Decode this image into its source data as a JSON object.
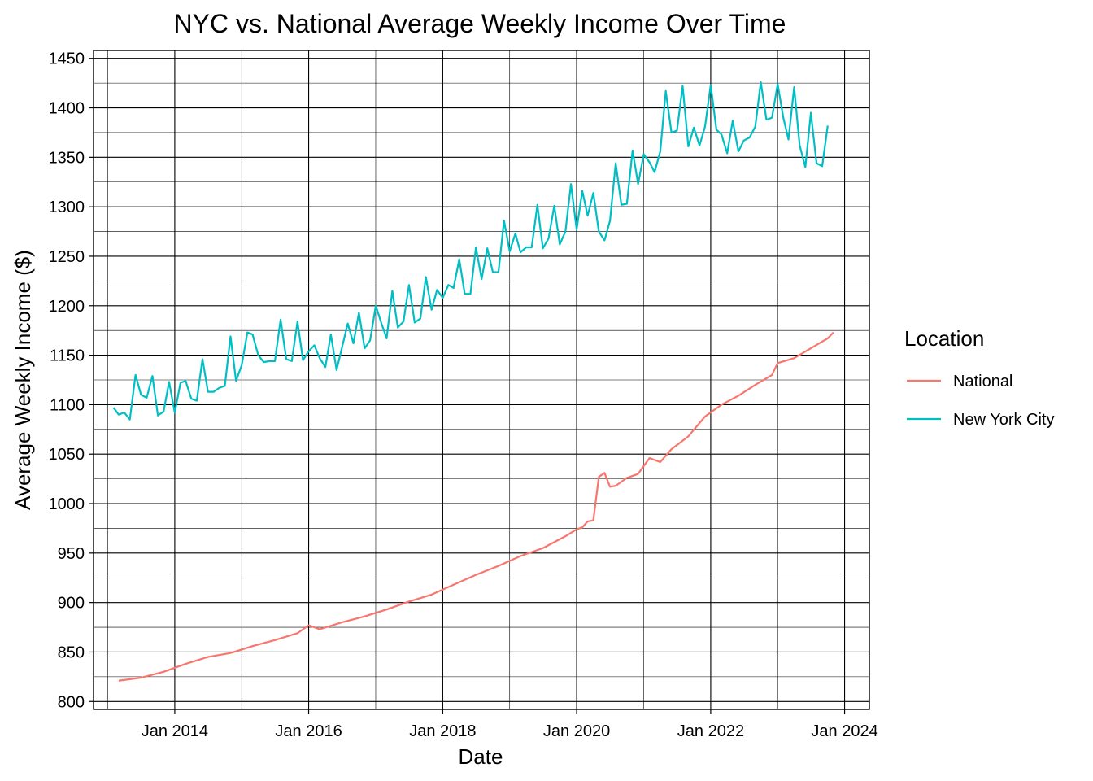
{
  "chart_data": {
    "type": "line",
    "title": "NYC vs. National Average Weekly Income Over Time",
    "xlabel": "Date",
    "ylabel": "Average Weekly Income ($)",
    "xlim": [
      "2012-10-15",
      "2024-05-15"
    ],
    "ylim": [
      792,
      1458
    ],
    "x_ticks": [
      "2014-01-01",
      "2016-01-01",
      "2018-01-01",
      "2020-01-01",
      "2022-01-01",
      "2024-01-01"
    ],
    "x_tick_labels": [
      "Jan 2014",
      "Jan 2016",
      "Jan 2018",
      "Jan 2020",
      "Jan 2022",
      "Jan 2024"
    ],
    "y_ticks": [
      800,
      850,
      900,
      950,
      1000,
      1050,
      1100,
      1150,
      1200,
      1250,
      1300,
      1350,
      1400,
      1450
    ],
    "grid": true,
    "legend": {
      "title": "Location",
      "position": "right"
    },
    "series": [
      {
        "name": "National",
        "color": "#F8766D",
        "points": [
          [
            "2013-03-01",
            821
          ],
          [
            "2013-07-01",
            824
          ],
          [
            "2013-11-01",
            830
          ],
          [
            "2014-03-01",
            838
          ],
          [
            "2014-07-01",
            845
          ],
          [
            "2014-11-01",
            849
          ],
          [
            "2015-03-01",
            856
          ],
          [
            "2015-07-01",
            862
          ],
          [
            "2015-11-01",
            869
          ],
          [
            "2016-01-01",
            877
          ],
          [
            "2016-03-01",
            873
          ],
          [
            "2016-07-01",
            880
          ],
          [
            "2016-11-01",
            886
          ],
          [
            "2017-03-01",
            893
          ],
          [
            "2017-07-01",
            901
          ],
          [
            "2017-11-01",
            908
          ],
          [
            "2018-03-01",
            918
          ],
          [
            "2018-07-01",
            928
          ],
          [
            "2018-11-01",
            937
          ],
          [
            "2019-03-01",
            947
          ],
          [
            "2019-07-01",
            955
          ],
          [
            "2019-11-01",
            967
          ],
          [
            "2020-01-01",
            974
          ],
          [
            "2020-02-01",
            976
          ],
          [
            "2020-03-01",
            982
          ],
          [
            "2020-04-01",
            983
          ],
          [
            "2020-05-01",
            1027
          ],
          [
            "2020-06-01",
            1031
          ],
          [
            "2020-07-01",
            1017
          ],
          [
            "2020-08-01",
            1018
          ],
          [
            "2020-10-01",
            1026
          ],
          [
            "2020-12-01",
            1030
          ],
          [
            "2021-02-01",
            1046
          ],
          [
            "2021-04-01",
            1042
          ],
          [
            "2021-06-01",
            1055
          ],
          [
            "2021-09-01",
            1068
          ],
          [
            "2021-12-01",
            1088
          ],
          [
            "2022-03-01",
            1100
          ],
          [
            "2022-06-01",
            1109
          ],
          [
            "2022-09-01",
            1120
          ],
          [
            "2022-12-01",
            1130
          ],
          [
            "2023-01-01",
            1142
          ],
          [
            "2023-04-01",
            1147
          ],
          [
            "2023-07-01",
            1157
          ],
          [
            "2023-10-01",
            1167
          ],
          [
            "2023-11-01",
            1173
          ]
        ]
      },
      {
        "name": "New York City",
        "color": "#00BFC4",
        "points": [
          [
            "2013-02-01",
            1097
          ],
          [
            "2013-03-01",
            1090
          ],
          [
            "2013-04-01",
            1092
          ],
          [
            "2013-05-01",
            1085
          ],
          [
            "2013-06-01",
            1130
          ],
          [
            "2013-07-01",
            1110
          ],
          [
            "2013-08-01",
            1107
          ],
          [
            "2013-09-01",
            1129
          ],
          [
            "2013-10-01",
            1089
          ],
          [
            "2013-11-01",
            1093
          ],
          [
            "2013-12-01",
            1123
          ],
          [
            "2014-01-01",
            1092
          ],
          [
            "2014-02-01",
            1122
          ],
          [
            "2014-03-01",
            1124
          ],
          [
            "2014-04-01",
            1106
          ],
          [
            "2014-05-01",
            1104
          ],
          [
            "2014-06-01",
            1146
          ],
          [
            "2014-07-01",
            1113
          ],
          [
            "2014-08-01",
            1113
          ],
          [
            "2014-09-01",
            1117
          ],
          [
            "2014-10-01",
            1119
          ],
          [
            "2014-11-01",
            1169
          ],
          [
            "2014-12-01",
            1124
          ],
          [
            "2015-01-01",
            1140
          ],
          [
            "2015-02-01",
            1173
          ],
          [
            "2015-03-01",
            1171
          ],
          [
            "2015-04-01",
            1150
          ],
          [
            "2015-05-01",
            1143
          ],
          [
            "2015-06-01",
            1144
          ],
          [
            "2015-07-01",
            1144
          ],
          [
            "2015-08-01",
            1186
          ],
          [
            "2015-09-01",
            1146
          ],
          [
            "2015-10-01",
            1144
          ],
          [
            "2015-11-01",
            1184
          ],
          [
            "2015-12-01",
            1145
          ],
          [
            "2016-01-01",
            1154
          ],
          [
            "2016-02-01",
            1160
          ],
          [
            "2016-03-01",
            1147
          ],
          [
            "2016-04-01",
            1138
          ],
          [
            "2016-05-01",
            1171
          ],
          [
            "2016-06-01",
            1135
          ],
          [
            "2016-07-01",
            1158
          ],
          [
            "2016-08-01",
            1182
          ],
          [
            "2016-09-01",
            1162
          ],
          [
            "2016-10-01",
            1193
          ],
          [
            "2016-11-01",
            1157
          ],
          [
            "2016-12-01",
            1165
          ],
          [
            "2017-01-01",
            1200
          ],
          [
            "2017-02-01",
            1182
          ],
          [
            "2017-03-01",
            1167
          ],
          [
            "2017-04-01",
            1215
          ],
          [
            "2017-05-01",
            1178
          ],
          [
            "2017-06-01",
            1184
          ],
          [
            "2017-07-01",
            1221
          ],
          [
            "2017-08-01",
            1183
          ],
          [
            "2017-09-01",
            1187
          ],
          [
            "2017-10-01",
            1229
          ],
          [
            "2017-11-01",
            1196
          ],
          [
            "2017-12-01",
            1216
          ],
          [
            "2018-01-01",
            1208
          ],
          [
            "2018-02-01",
            1221
          ],
          [
            "2018-03-01",
            1218
          ],
          [
            "2018-04-01",
            1247
          ],
          [
            "2018-05-01",
            1212
          ],
          [
            "2018-06-01",
            1212
          ],
          [
            "2018-07-01",
            1259
          ],
          [
            "2018-08-01",
            1227
          ],
          [
            "2018-09-01",
            1258
          ],
          [
            "2018-10-01",
            1234
          ],
          [
            "2018-11-01",
            1234
          ],
          [
            "2018-12-01",
            1286
          ],
          [
            "2019-01-01",
            1255
          ],
          [
            "2019-02-01",
            1273
          ],
          [
            "2019-03-01",
            1254
          ],
          [
            "2019-04-01",
            1259
          ],
          [
            "2019-05-01",
            1259
          ],
          [
            "2019-06-01",
            1302
          ],
          [
            "2019-07-01",
            1258
          ],
          [
            "2019-08-01",
            1268
          ],
          [
            "2019-09-01",
            1301
          ],
          [
            "2019-10-01",
            1262
          ],
          [
            "2019-11-01",
            1275
          ],
          [
            "2019-12-01",
            1323
          ],
          [
            "2020-01-01",
            1277
          ],
          [
            "2020-02-01",
            1316
          ],
          [
            "2020-03-01",
            1291
          ],
          [
            "2020-04-01",
            1314
          ],
          [
            "2020-05-01",
            1275
          ],
          [
            "2020-06-01",
            1266
          ],
          [
            "2020-07-01",
            1286
          ],
          [
            "2020-08-01",
            1344
          ],
          [
            "2020-09-01",
            1302
          ],
          [
            "2020-10-01",
            1303
          ],
          [
            "2020-11-01",
            1357
          ],
          [
            "2020-12-01",
            1323
          ],
          [
            "2021-01-01",
            1353
          ],
          [
            "2021-02-01",
            1345
          ],
          [
            "2021-03-01",
            1335
          ],
          [
            "2021-04-01",
            1356
          ],
          [
            "2021-05-01",
            1417
          ],
          [
            "2021-06-01",
            1375
          ],
          [
            "2021-07-01",
            1377
          ],
          [
            "2021-08-01",
            1422
          ],
          [
            "2021-09-01",
            1361
          ],
          [
            "2021-10-01",
            1380
          ],
          [
            "2021-11-01",
            1362
          ],
          [
            "2021-12-01",
            1381
          ],
          [
            "2022-01-01",
            1423
          ],
          [
            "2022-02-01",
            1378
          ],
          [
            "2022-03-01",
            1373
          ],
          [
            "2022-04-01",
            1354
          ],
          [
            "2022-05-01",
            1387
          ],
          [
            "2022-06-01",
            1356
          ],
          [
            "2022-07-01",
            1367
          ],
          [
            "2022-08-01",
            1370
          ],
          [
            "2022-09-01",
            1381
          ],
          [
            "2022-10-01",
            1426
          ],
          [
            "2022-11-01",
            1388
          ],
          [
            "2022-12-01",
            1390
          ],
          [
            "2023-01-01",
            1424
          ],
          [
            "2023-02-01",
            1390
          ],
          [
            "2023-03-01",
            1368
          ],
          [
            "2023-04-01",
            1421
          ],
          [
            "2023-05-01",
            1362
          ],
          [
            "2023-06-01",
            1340
          ],
          [
            "2023-07-01",
            1395
          ],
          [
            "2023-08-01",
            1344
          ],
          [
            "2023-09-01",
            1341
          ],
          [
            "2023-10-01",
            1382
          ]
        ]
      }
    ]
  }
}
